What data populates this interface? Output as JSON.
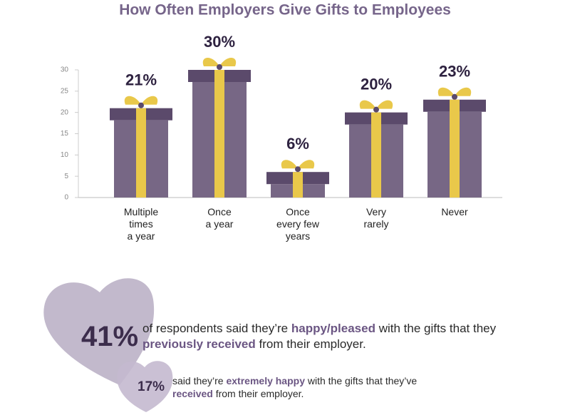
{
  "chart_data": {
    "type": "bar",
    "title": "How Often Employers Give Gifts to Employees",
    "categories": [
      "Multiple\ntimes\na year",
      "Once\na year",
      "Once\nevery few\nyears",
      "Very\nrarely",
      "Never"
    ],
    "values": [
      21,
      30,
      6,
      20,
      23
    ],
    "value_labels": [
      "21%",
      "30%",
      "6%",
      "20%",
      "23%"
    ],
    "color": "#776785",
    "lid_color": "#5b4a6b",
    "ribbon_color": "#e9c84a",
    "ylim": [
      0,
      30
    ],
    "yticks": [
      0,
      5,
      10,
      15,
      20,
      25,
      30
    ]
  },
  "stats": [
    {
      "value": "41%",
      "parts": [
        {
          "text": "of respondents said they’re "
        },
        {
          "text": "happy/pleased",
          "strong": true
        },
        {
          "text": " with the gifts that they "
        },
        {
          "text": "previously received",
          "strong": true
        },
        {
          "text": " from their employer."
        }
      ]
    },
    {
      "value": "17%",
      "parts": [
        {
          "text": "said they’re "
        },
        {
          "text": "extremely happy",
          "strong": true
        },
        {
          "text": " with the gifts that they’ve "
        },
        {
          "text": "received",
          "strong": true
        },
        {
          "text": " from their employer."
        }
      ]
    }
  ]
}
